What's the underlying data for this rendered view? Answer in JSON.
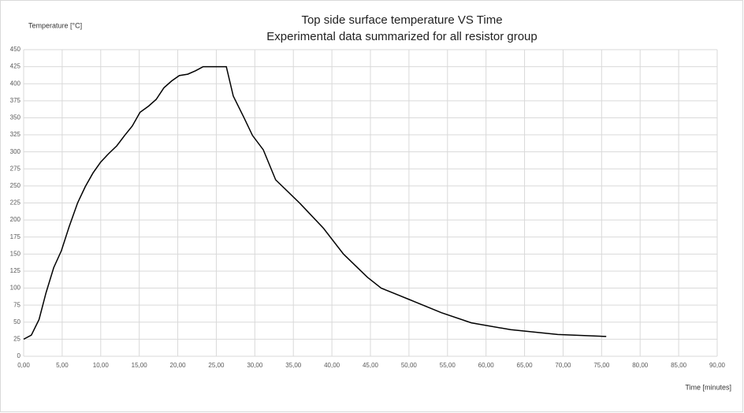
{
  "chart_data": {
    "type": "line",
    "title": "Top side surface temperature VS Time",
    "subtitle": "Experimental data summarized for all resistor group",
    "y_label": "Temperature [°C]",
    "x_label": "Time [minutes]",
    "x": [
      0,
      1.0,
      2.0,
      2.9,
      3.9,
      4.9,
      5.9,
      7.0,
      8.0,
      9.0,
      10.0,
      11.0,
      12.1,
      13.1,
      14.1,
      15.1,
      16.2,
      17.2,
      18.2,
      19.2,
      20.2,
      21.3,
      22.3,
      23.3,
      26.3,
      27.2,
      28.6,
      29.7,
      31.1,
      32.7,
      35.8,
      38.9,
      41.5,
      44.6,
      46.4,
      50.1,
      54.2,
      58.1,
      63.2,
      69.3,
      75.6
    ],
    "series": [
      {
        "color": "#000000",
        "values": [
          25,
          31,
          54,
          93,
          130,
          155,
          190,
          225,
          249,
          269,
          285,
          297,
          309,
          324,
          338,
          358,
          367,
          377,
          394,
          404,
          412,
          414,
          419,
          425,
          425,
          382,
          350,
          324,
          303,
          259,
          225,
          188,
          150,
          116,
          100,
          83,
          64,
          49,
          39,
          32,
          29
        ]
      }
    ],
    "xlim": [
      0,
      90
    ],
    "xticks": [
      {
        "value": 0,
        "label": "0,00"
      },
      {
        "value": 5,
        "label": "5,00"
      },
      {
        "value": 10,
        "label": "10,00"
      },
      {
        "value": 15,
        "label": "15,00"
      },
      {
        "value": 20,
        "label": "20,00"
      },
      {
        "value": 25,
        "label": "25,00"
      },
      {
        "value": 30,
        "label": "30,00"
      },
      {
        "value": 35,
        "label": "35,00"
      },
      {
        "value": 40,
        "label": "40,00"
      },
      {
        "value": 45,
        "label": "45,00"
      },
      {
        "value": 50,
        "label": "50,00"
      },
      {
        "value": 55,
        "label": "55,00"
      },
      {
        "value": 60,
        "label": "60,00"
      },
      {
        "value": 65,
        "label": "65,00"
      },
      {
        "value": 70,
        "label": "70,00"
      },
      {
        "value": 75,
        "label": "75,00"
      },
      {
        "value": 80,
        "label": "80,00"
      },
      {
        "value": 85,
        "label": "85,00"
      },
      {
        "value": 90,
        "label": "90,00"
      }
    ],
    "ylim": [
      0,
      450
    ],
    "yticks": [
      0,
      25,
      50,
      75,
      100,
      125,
      150,
      175,
      200,
      225,
      250,
      275,
      300,
      325,
      350,
      375,
      400,
      425,
      450
    ],
    "grid": true
  }
}
